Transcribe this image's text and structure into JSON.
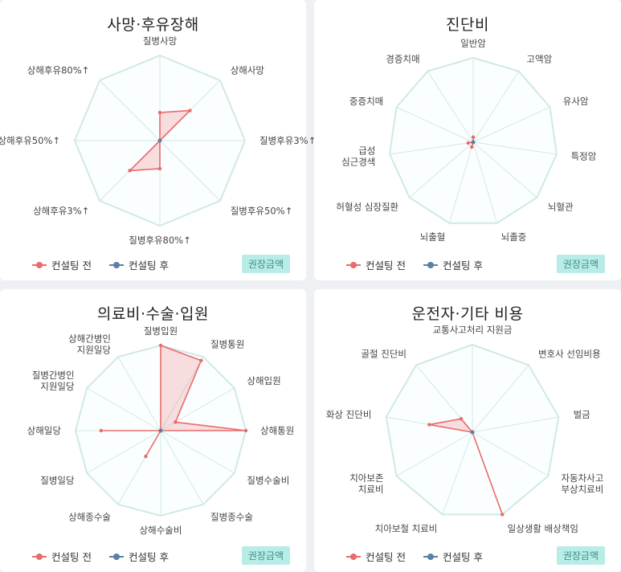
{
  "colors": {
    "before": "#e96b6b",
    "after": "#5b7fa6",
    "grid": "#cfe9e6",
    "accent": "#b9ece6"
  },
  "legend": {
    "before": "컨설팅 전",
    "after": "컨설팅 후"
  },
  "badge_label": "권장금액",
  "chart_data": [
    {
      "type": "radar",
      "title": "사망·후유장해",
      "axes": [
        "질병사망",
        "상해사망",
        "질병후유3%↑",
        "질병후유50%↑",
        "질병후유80%↑",
        "상해후유3%↑",
        "상해후유50%↑",
        "상해후유80%↑"
      ],
      "series": [
        {
          "name": "컨설팅 전",
          "values": [
            0.33,
            0.5,
            0.0,
            0.0,
            0.33,
            0.5,
            0.0,
            0.0
          ]
        },
        {
          "name": "컨설팅 후",
          "values": [
            0,
            0,
            0,
            0,
            0,
            0,
            0,
            0
          ]
        }
      ],
      "max": 1
    },
    {
      "type": "radar",
      "title": "진단비",
      "axes": [
        "일반암",
        "고액암",
        "유사암",
        "특정암",
        "뇌혈관",
        "뇌졸중",
        "뇌출혈",
        "허혈성 심장질환",
        "급성\n심근경색",
        "중증치매",
        "경증치매"
      ],
      "series": [
        {
          "name": "컨설팅 전",
          "values": [
            0.06,
            0.0,
            0.0,
            0.0,
            0.0,
            0.0,
            0.06,
            0.0,
            0.06,
            0.0,
            0.0
          ]
        },
        {
          "name": "컨설팅 후",
          "values": [
            0,
            0,
            0,
            0,
            0,
            0,
            0,
            0,
            0,
            0,
            0
          ]
        }
      ],
      "max": 1
    },
    {
      "type": "radar",
      "title": "의료비·수술·입원",
      "axes": [
        "질병입원",
        "질병통원",
        "상해입원",
        "상해통원",
        "질병수술비",
        "질병종수술",
        "상해수술비",
        "상해종수술",
        "질병일당",
        "상해일당",
        "질병간병인\n지원일당",
        "상해간병인\n지원일당"
      ],
      "series": [
        {
          "name": "컨설팅 전",
          "values": [
            1.0,
            0.95,
            0.2,
            1.0,
            0.0,
            0.0,
            0.0,
            0.35,
            0.0,
            0.7,
            0.0,
            0.0
          ]
        },
        {
          "name": "컨설팅 후",
          "values": [
            0,
            0,
            0,
            0,
            0,
            0,
            0,
            0,
            0,
            0,
            0,
            0
          ]
        }
      ],
      "max": 1
    },
    {
      "type": "radar",
      "title": "운전자·기타 비용",
      "axes": [
        "교통사고처리 지원금",
        "변호사 선임비용",
        "벌금",
        "자동차사고\n부상치료비",
        "일상생활 배상책임",
        "치아보철 치료비",
        "치아보존\n치료비",
        "화상 진단비",
        "골절 진단비"
      ],
      "series": [
        {
          "name": "컨설팅 전",
          "values": [
            0.0,
            0.0,
            0.0,
            0.0,
            1.0,
            0.0,
            0.0,
            0.5,
            0.2
          ]
        },
        {
          "name": "컨설팅 후",
          "values": [
            0,
            0,
            0,
            0,
            0,
            0,
            0,
            0,
            0
          ]
        }
      ],
      "max": 1
    }
  ]
}
